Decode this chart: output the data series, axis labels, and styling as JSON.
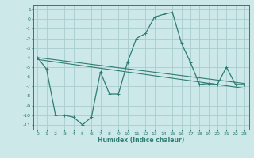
{
  "xlabel": "Humidex (Indice chaleur)",
  "background_color": "#cce8e8",
  "grid_color": "#aacccc",
  "line_color": "#2e7d72",
  "xlim": [
    -0.5,
    23.5
  ],
  "ylim": [
    -11.5,
    1.5
  ],
  "xticks": [
    0,
    1,
    2,
    3,
    4,
    5,
    6,
    7,
    8,
    9,
    10,
    11,
    12,
    13,
    14,
    15,
    16,
    17,
    18,
    19,
    20,
    21,
    22,
    23
  ],
  "yticks": [
    1,
    0,
    -1,
    -2,
    -3,
    -4,
    -5,
    -6,
    -7,
    -8,
    -9,
    -10,
    -11
  ],
  "series1_x": [
    0,
    1,
    2,
    3,
    4,
    5,
    6,
    7,
    8,
    9,
    10,
    11,
    12,
    13,
    14,
    15,
    16,
    17,
    18,
    19,
    20,
    21,
    22,
    23
  ],
  "series1_y": [
    -4,
    -5.2,
    -10,
    -10,
    -10.2,
    -11,
    -10.2,
    -5.5,
    -7.8,
    -7.8,
    -4.5,
    -2.0,
    -1.5,
    0.2,
    0.5,
    0.7,
    -2.5,
    -4.5,
    -6.8,
    -6.7,
    -6.8,
    -5.0,
    -6.8,
    -6.8
  ],
  "series2_x": [
    0,
    23
  ],
  "series2_y": [
    -4.0,
    -6.7
  ],
  "series3_x": [
    0,
    23
  ],
  "series3_y": [
    -4.2,
    -7.2
  ],
  "xlabel_fontsize": 5.5,
  "tick_fontsize": 4.5
}
